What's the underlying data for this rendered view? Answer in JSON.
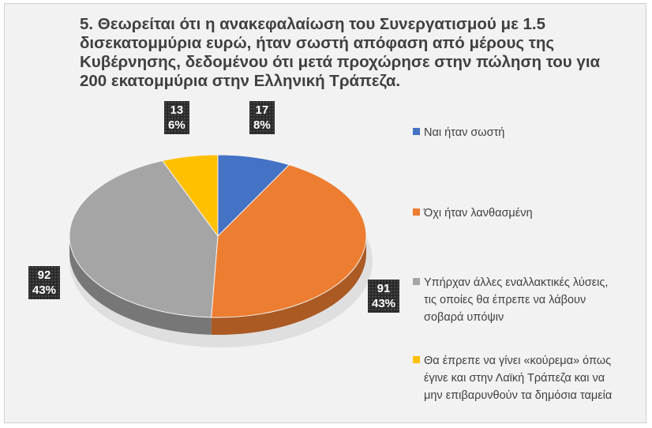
{
  "chart_data": {
    "type": "pie",
    "title": "5.  Θεωρείται ότι η ανακεφαλαίωση του Συνεργατισμού με 1.5 δισεκατομμύρια ευρώ, ήταν σωστή απόφαση από μέρους της Κυβέρνησης, δεδομένου ότι μετά προχώρησε στην πώληση του για 200 εκατομμύρια στην Ελληνική Τράπεζα.",
    "legend_position": "right",
    "slices": [
      {
        "label": "Ναι ήταν σωστή",
        "value": 17,
        "percent": "8%",
        "color": "#4472c4"
      },
      {
        "label": "Όχι ήταν λανθασμένη",
        "value": 91,
        "percent": "43%",
        "color": "#ed7d31"
      },
      {
        "label": "Υπήρχαν άλλες εναλλακτικές λύσεις,\nτις οποίες θα έπρεπε να λάβουν\nσοβαρά υπόψιν",
        "value": 92,
        "percent": "43%",
        "color": "#a5a5a5"
      },
      {
        "label": "Θα έπρεπε να γίνει «κούρεμα» όπως\nέγινε και στην Λαϊκή Τράπεζα και να\nμην επιβαρυνθούν τα δημόσια ταμεία",
        "value": 13,
        "percent": "6%",
        "color": "#ffc000"
      }
    ]
  }
}
